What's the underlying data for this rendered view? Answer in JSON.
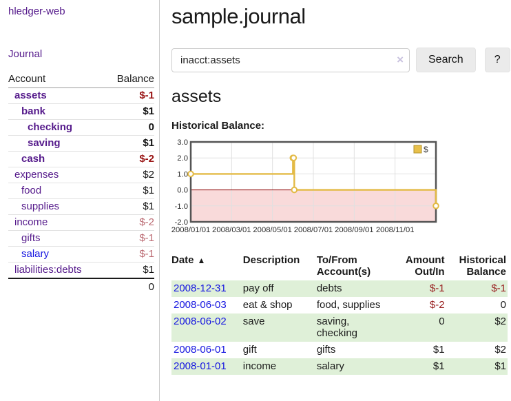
{
  "sidebar": {
    "brand": "hledger-web",
    "journal_link": "Journal",
    "table": {
      "account_header": "Account",
      "balance_header": "Balance",
      "rows": [
        {
          "name": "assets",
          "indent": 1,
          "bold": true,
          "blue": false,
          "balance": "$-1",
          "neg": "strong"
        },
        {
          "name": "bank",
          "indent": 2,
          "bold": true,
          "blue": false,
          "balance": "$1",
          "neg": ""
        },
        {
          "name": "checking",
          "indent": 3,
          "bold": true,
          "blue": false,
          "balance": "0",
          "neg": ""
        },
        {
          "name": "saving",
          "indent": 3,
          "bold": true,
          "blue": false,
          "balance": "$1",
          "neg": ""
        },
        {
          "name": "cash",
          "indent": 2,
          "bold": true,
          "blue": false,
          "balance": "$-2",
          "neg": "strong"
        },
        {
          "name": "expenses",
          "indent": 1,
          "bold": false,
          "blue": false,
          "balance": "$2",
          "neg": ""
        },
        {
          "name": "food",
          "indent": 2,
          "bold": false,
          "blue": false,
          "balance": "$1",
          "neg": ""
        },
        {
          "name": "supplies",
          "indent": 2,
          "bold": false,
          "blue": false,
          "balance": "$1",
          "neg": ""
        },
        {
          "name": "income",
          "indent": 1,
          "bold": false,
          "blue": false,
          "balance": "$-2",
          "neg": "muted"
        },
        {
          "name": "gifts",
          "indent": 2,
          "bold": false,
          "blue": false,
          "balance": "$-1",
          "neg": "muted"
        },
        {
          "name": "salary",
          "indent": 2,
          "bold": false,
          "blue": true,
          "balance": "$-1",
          "neg": "muted"
        },
        {
          "name": "liabilities:debts",
          "indent": 1,
          "bold": false,
          "blue": false,
          "balance": "$1",
          "neg": ""
        }
      ],
      "total": "0"
    }
  },
  "main": {
    "title": "sample.journal",
    "search": {
      "value": "inacct:assets",
      "clear_icon": "×",
      "button_label": "Search",
      "help_label": "?"
    },
    "account_heading": "assets",
    "chart_label": "Historical Balance:",
    "register": {
      "headers": {
        "date": "Date",
        "sort_icon": "▲",
        "description": "Description",
        "to_from": "To/From\nAccount(s)",
        "amount": "Amount\nOut/In",
        "balance": "Historical\nBalance"
      },
      "rows": [
        {
          "date": "2008-12-31",
          "description": "pay off",
          "to_from": "debts",
          "amount": "$-1",
          "amount_negative": true,
          "balance": "$-1",
          "balance_negative": true
        },
        {
          "date": "2008-06-03",
          "description": "eat & shop",
          "to_from": "food, supplies",
          "amount": "$-2",
          "amount_negative": true,
          "balance": "0",
          "balance_negative": false
        },
        {
          "date": "2008-06-02",
          "description": "save",
          "to_from": "saving,\nchecking",
          "amount": "0",
          "amount_negative": false,
          "balance": "$2",
          "balance_negative": false
        },
        {
          "date": "2008-06-01",
          "description": "gift",
          "to_from": "gifts",
          "amount": "$1",
          "amount_negative": false,
          "balance": "$2",
          "balance_negative": false
        },
        {
          "date": "2008-01-01",
          "description": "income",
          "to_from": "salary",
          "amount": "$1",
          "amount_negative": false,
          "balance": "$1",
          "balance_negative": false
        }
      ]
    }
  },
  "chart_data": {
    "type": "line",
    "step": true,
    "title": "Historical Balance:",
    "legend": [
      {
        "name": "$"
      }
    ],
    "legend_position": "top-right",
    "points": [
      {
        "date": "2008-01-01",
        "value": 1
      },
      {
        "date": "2008-06-01",
        "value": 2
      },
      {
        "date": "2008-06-02",
        "value": 2
      },
      {
        "date": "2008-06-03",
        "value": 0
      },
      {
        "date": "2008-12-31",
        "value": -1
      }
    ],
    "x_ticks": [
      "2008/01/01",
      "2008/03/01",
      "2008/05/01",
      "2008/07/01",
      "2008/09/01",
      "2008/11/01"
    ],
    "y_ticks": [
      "3.0",
      "2.0",
      "1.0",
      "0.0",
      "-1.0",
      "-2.0"
    ],
    "ylim": [
      -2,
      3
    ],
    "xlim_months": [
      0,
      12
    ],
    "grid": true
  },
  "colors": {
    "link_purple": "#551a8b",
    "link_blue": "#1515e0",
    "negative_strong": "#991414",
    "negative_muted": "#bb6a72",
    "register_negative": "#971c1c",
    "stripe_green": "#dff0d8",
    "chart_line": "#e3ba45",
    "chart_negative_fill": "#f9dada",
    "chart_zero_line": "#8b0000",
    "legend_swatch_fill": "#e8c04a",
    "legend_swatch_border": "#b2922e"
  }
}
